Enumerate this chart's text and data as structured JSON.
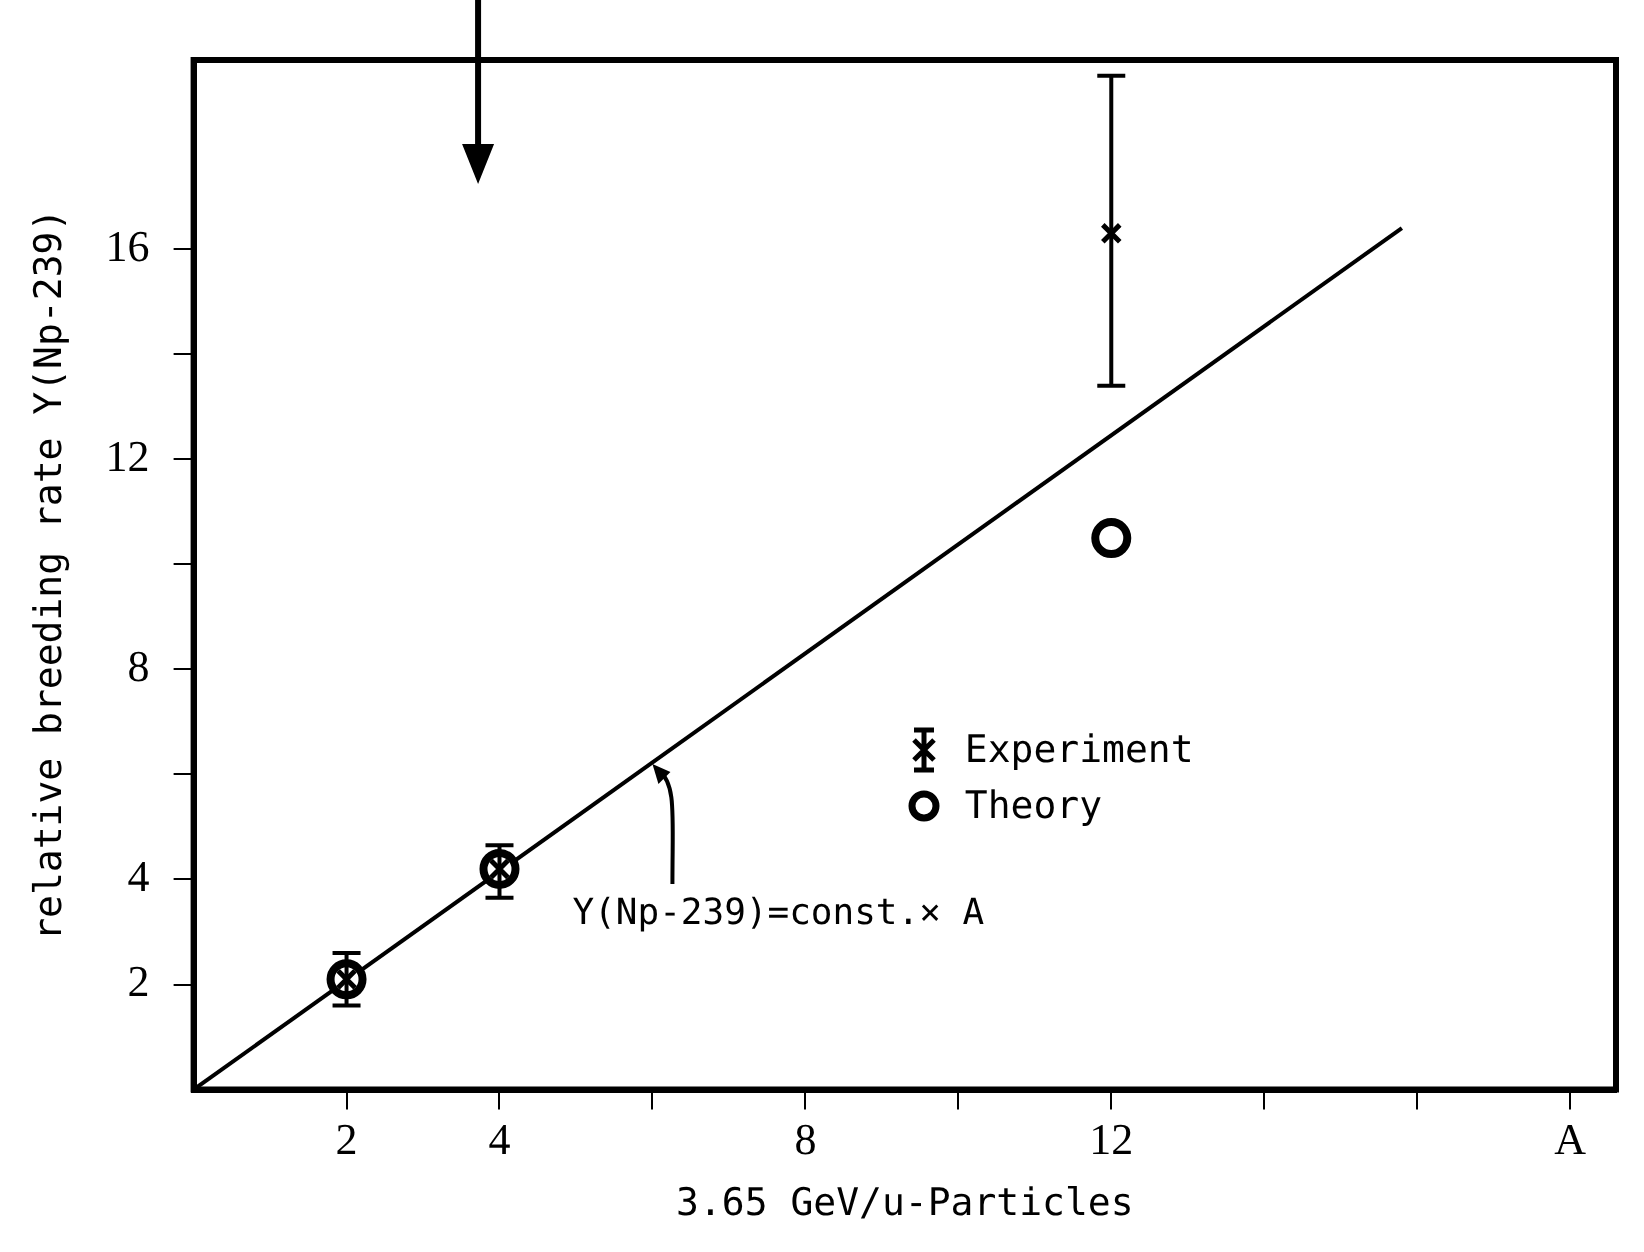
{
  "chart_data": {
    "type": "scatter",
    "xlabel": "3.65 GeV/u-Particles",
    "ylabel": "relative breeding rate Y(Np-239)",
    "xlim": [
      0,
      18.6
    ],
    "ylim": [
      0,
      19.6
    ],
    "xticks": [
      2,
      4,
      {
        "value": 6,
        "label": null
      },
      8,
      {
        "value": 10,
        "label": null
      },
      12,
      {
        "value": 14,
        "label": null
      },
      {
        "value": 16,
        "label": null
      },
      {
        "value": 18,
        "label": "A"
      }
    ],
    "yticks": [
      2,
      4,
      {
        "value": 6,
        "label": null
      },
      8,
      {
        "value": 10,
        "label": null
      },
      12,
      {
        "value": 14,
        "label": null
      },
      16
    ],
    "grid": false,
    "legend": "bottom right",
    "series": [
      {
        "name": "Experiment",
        "color": "#000000",
        "marker": "cross",
        "x": [
          2,
          4,
          12
        ],
        "values": [
          2.1,
          4.2,
          16.3
        ],
        "errors": [
          [
            1.6,
            2.6
          ],
          [
            3.65,
            4.65
          ],
          [
            13.4,
            19.3
          ]
        ]
      },
      {
        "name": "Theory",
        "color": "#000000",
        "marker": "circle",
        "x": [
          2,
          4,
          12
        ],
        "values": [
          2.1,
          4.2,
          10.5
        ]
      },
      {
        "type": "line",
        "color": "#000000",
        "marker": "none",
        "x": [
          0,
          15.8
        ],
        "values": [
          0,
          16.4
        ]
      }
    ],
    "annotations": [
      {
        "text": "Y(Np-239)=const.× A",
        "x": 6,
        "y": 6.2
      }
    ]
  }
}
